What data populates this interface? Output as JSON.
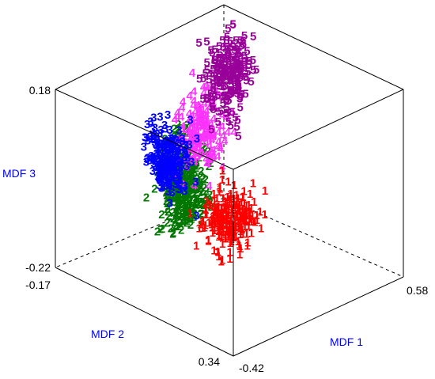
{
  "chart_data": {
    "type": "scatter",
    "projection": "3d",
    "axes": {
      "x": {
        "label": "MDF 1",
        "range": [
          -0.42,
          0.58
        ],
        "tick_labels": [
          "-0.42",
          "0.58"
        ]
      },
      "y": {
        "label": "MDF 2",
        "range": [
          -0.17,
          0.34
        ],
        "tick_labels": [
          "-0.17",
          "0.34"
        ]
      },
      "z": {
        "label": "MDF 3",
        "range": [
          -0.22,
          0.18
        ],
        "tick_labels": [
          "-0.22",
          "0.18"
        ]
      }
    },
    "axis_label_color": "#0000ff",
    "grid": false,
    "legend": "none",
    "point_marker": "group digit",
    "series": [
      {
        "group": "1",
        "color": "#ff0000",
        "center": {
          "x": 0.46,
          "y": 0.29,
          "z": 0.0
        },
        "spread": {
          "x": 0.05,
          "y": 0.03,
          "z": 0.03
        },
        "points": 240
      },
      {
        "group": "2",
        "color": "#007700",
        "center": {
          "x": -0.33,
          "y": 0.0,
          "z": -0.14
        },
        "spread": {
          "x": 0.04,
          "y": 0.03,
          "z": 0.05
        },
        "points": 320
      },
      {
        "group": "3",
        "color": "#0000ff",
        "center": {
          "x": 0.18,
          "y": 0.33,
          "z": 0.09
        },
        "spread": {
          "x": 0.05,
          "y": 0.02,
          "z": 0.035
        },
        "points": 220
      },
      {
        "group": "4",
        "color": "#ff33ff",
        "center": {
          "x": -0.25,
          "y": 0.0,
          "z": -0.02
        },
        "spread": {
          "x": 0.04,
          "y": 0.03,
          "z": 0.04
        },
        "points": 180
      },
      {
        "group": "5",
        "color": "#990099",
        "center": {
          "x": -0.32,
          "y": -0.13,
          "z": 0.05
        },
        "spread": {
          "x": 0.04,
          "y": 0.03,
          "z": 0.04
        },
        "points": 220
      }
    ]
  }
}
